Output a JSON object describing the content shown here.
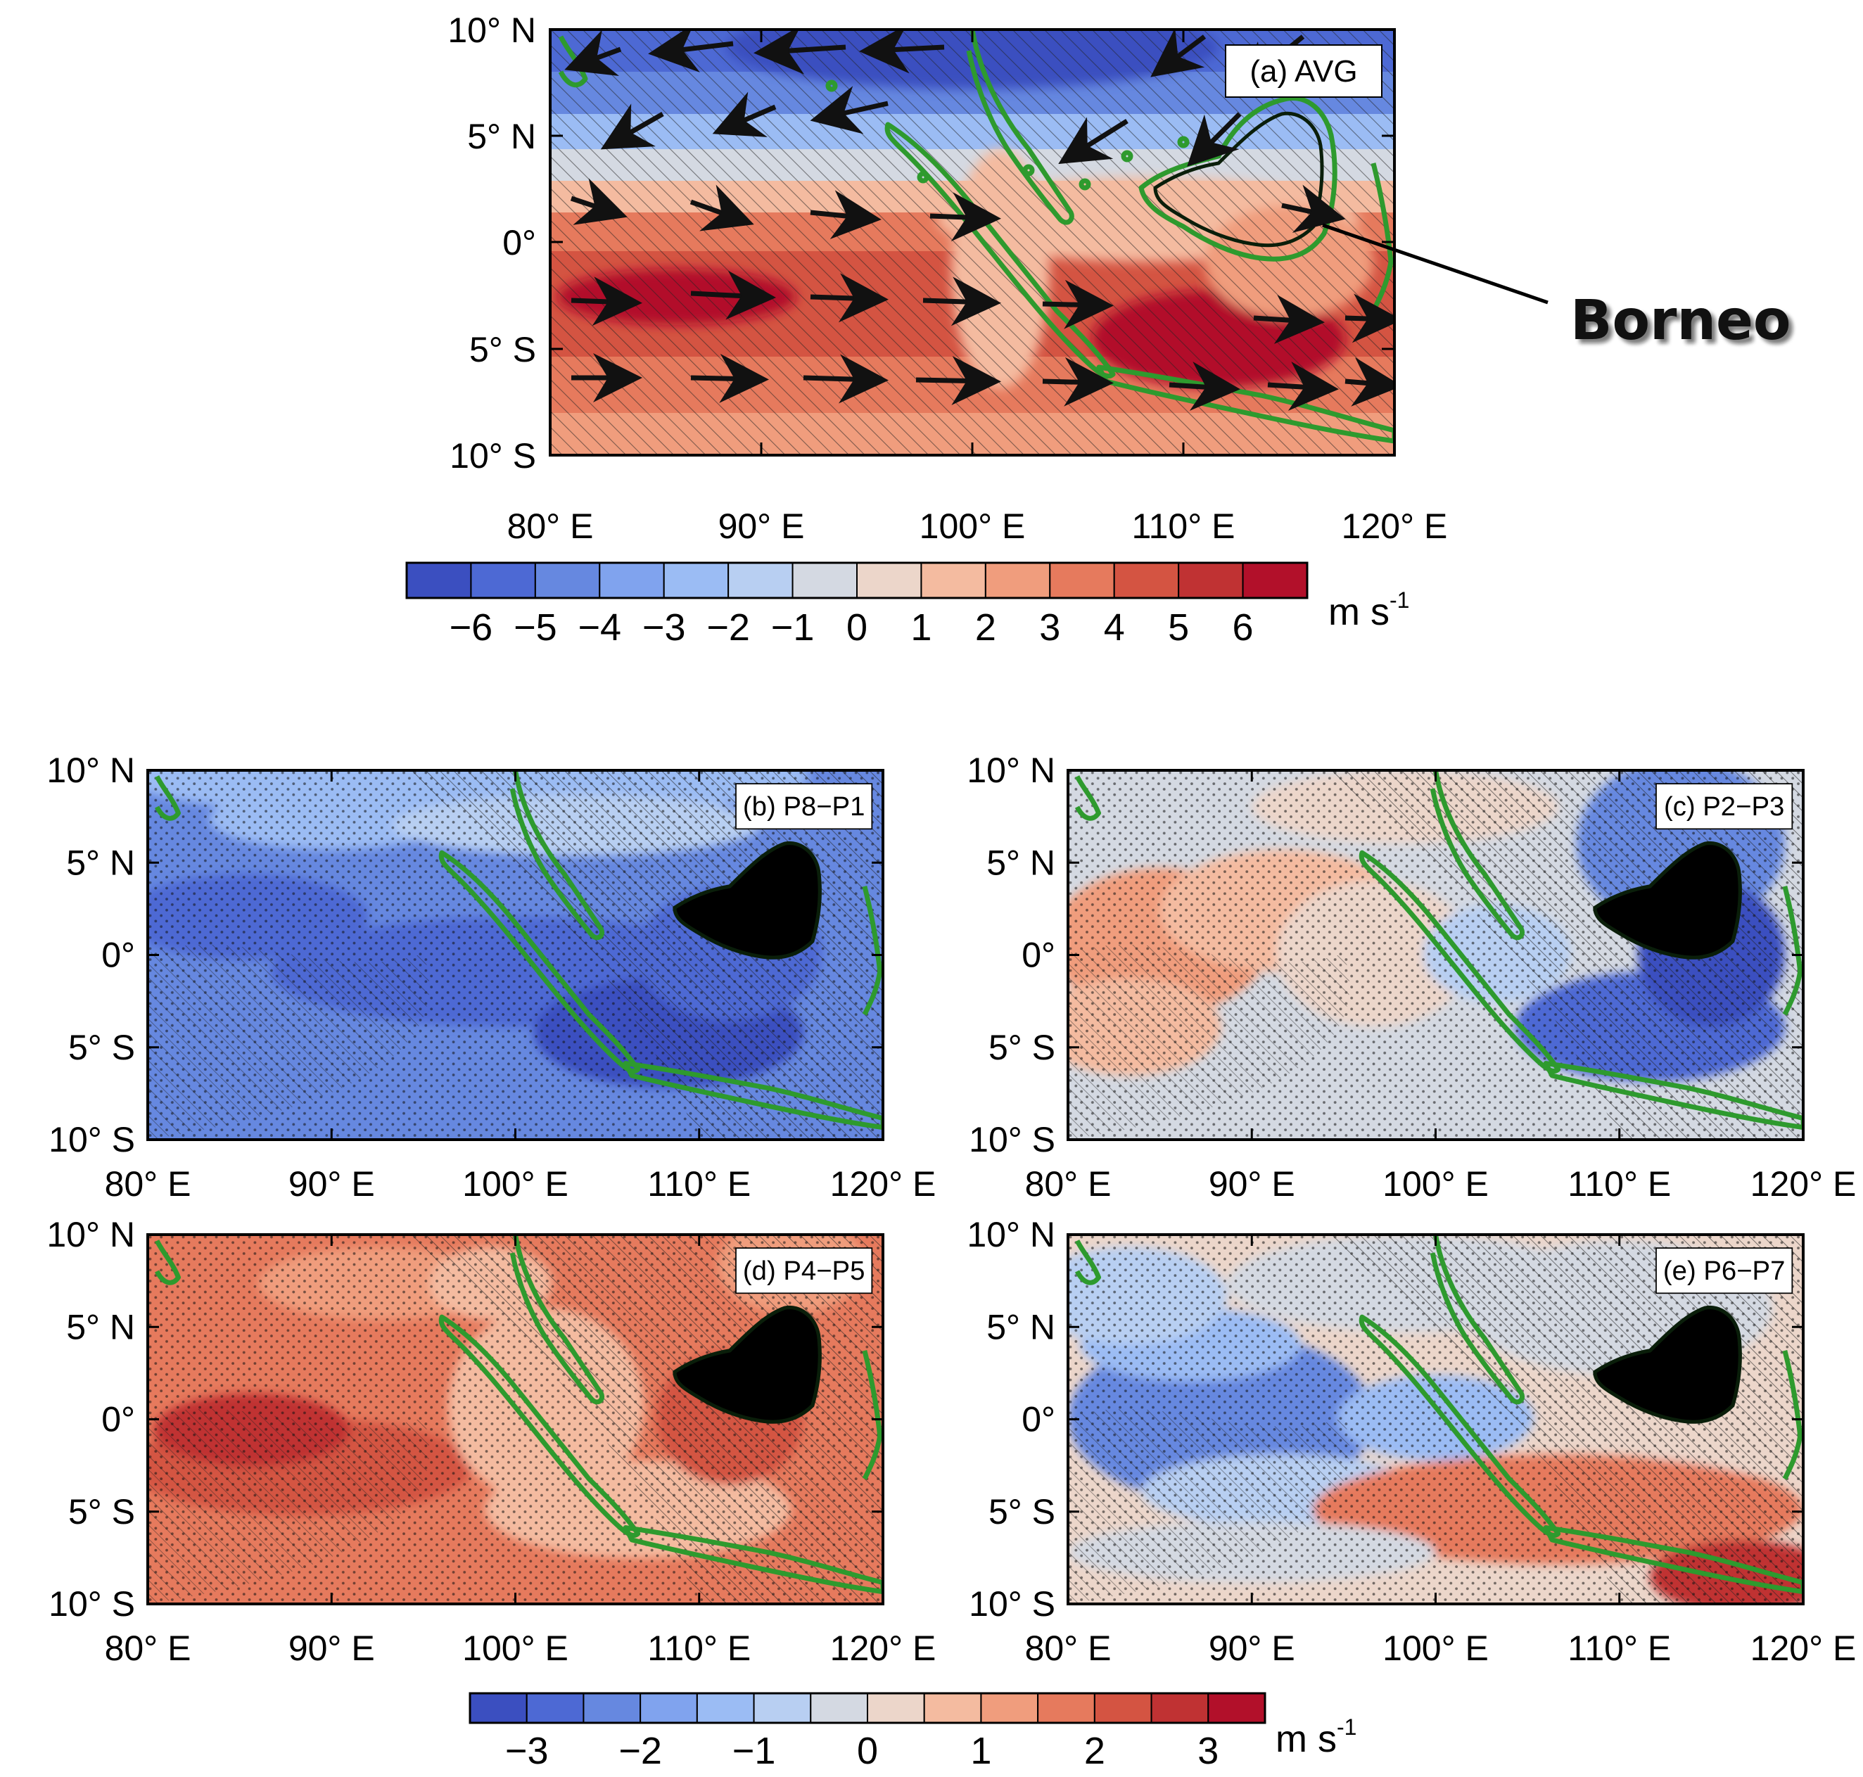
{
  "figure": {
    "callout": "Borneo",
    "units": "m s-1",
    "units_main": "m s",
    "units_exp": "-1",
    "lon_ticks": [
      "80° E",
      "90° E",
      "100° E",
      "110° E",
      "120° E"
    ],
    "lat_ticks": [
      "10° N",
      "5° N",
      "0°",
      "5° S",
      "10° S"
    ],
    "lon_range": [
      80,
      120
    ],
    "lat_range": [
      -10,
      10
    ],
    "colorbar_top": {
      "labels": [
        "−6",
        "−5",
        "−4",
        "−3",
        "−2",
        "−1",
        "0",
        "1",
        "2",
        "3",
        "4",
        "5",
        "6"
      ],
      "colors": [
        "#3b4fc0",
        "#4d69d4",
        "#6688e0",
        "#80a3ee",
        "#9bbcf4",
        "#b8cff2",
        "#d4d9e2",
        "#ecd6ca",
        "#f4bba0",
        "#f09d7d",
        "#e67a5d",
        "#d45442",
        "#c03233",
        "#b2102a"
      ]
    },
    "colorbar_bottom": {
      "labels": [
        "−3",
        "−2",
        "−1",
        "0",
        "1",
        "2",
        "3"
      ],
      "colors": [
        "#3b4fc0",
        "#4d69d4",
        "#6688e0",
        "#80a3ee",
        "#9bbcf4",
        "#b8cff2",
        "#d4d9e2",
        "#ecd6ca",
        "#f4bba0",
        "#f09d7d",
        "#e67a5d",
        "#d45442",
        "#c03233",
        "#b2102a"
      ]
    },
    "panels": [
      {
        "id": "a",
        "label": "(a) AVG",
        "pattern": "winds",
        "stipple": false
      },
      {
        "id": "b",
        "label": "(b) P8−P1",
        "pattern": "easterly-anomaly",
        "stipple": true
      },
      {
        "id": "c",
        "label": "(c) P2−P3",
        "pattern": "mixed-weak",
        "stipple": true
      },
      {
        "id": "d",
        "label": "(d) P4−P5",
        "pattern": "westerly-anomaly",
        "stipple": true
      },
      {
        "id": "e",
        "label": "(e) P6−P7",
        "pattern": "mixed-south-positive",
        "stipple": true
      }
    ]
  }
}
